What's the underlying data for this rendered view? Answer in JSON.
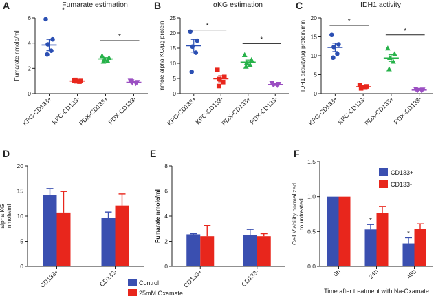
{
  "chart_data": [
    {
      "panel": "A",
      "type": "scatter",
      "title": "Fumarate estimation",
      "ylabel": "Fumarate nmole/ml",
      "ylim": [
        0,
        6
      ],
      "yticks": [
        0,
        2,
        4,
        6
      ],
      "categories": [
        "KPC-CD133+",
        "KPC-CD133-",
        "PDX-CD133+",
        "PDX-CD133-"
      ],
      "colors": [
        "#2b4fb3",
        "#e8261c",
        "#27b24a",
        "#9b4fc2"
      ],
      "markers": [
        "circle",
        "square",
        "triangle-up",
        "triangle-down"
      ],
      "points": [
        [
          5.9,
          4.3,
          3.9,
          3.4,
          3.1
        ],
        [
          1.05,
          1.0,
          0.98,
          0.95,
          1.08
        ],
        [
          3.0,
          2.85,
          2.7,
          2.6,
          2.55
        ],
        [
          1.0,
          0.9,
          0.85,
          0.8,
          0.95
        ]
      ],
      "means": [
        3.85,
        1.0,
        2.75,
        0.9
      ],
      "sems": [
        0.45,
        0.05,
        0.1,
        0.05
      ],
      "significance": [
        {
          "from": 0,
          "to": 1,
          "y": 6.3,
          "label": "*"
        },
        {
          "from": 2,
          "to": 3,
          "y": 4.2,
          "label": "*"
        }
      ]
    },
    {
      "panel": "B",
      "type": "scatter",
      "title": "αKG estimation",
      "ylabel": "nmole alpha KG/µg protein",
      "ylim": [
        0,
        25
      ],
      "yticks": [
        0,
        5,
        10,
        15,
        20,
        25
      ],
      "categories": [
        "KPC-CD133+",
        "KPC-CD133-",
        "PDX-CD133+",
        "PDX-CD133-"
      ],
      "colors": [
        "#2b4fb3",
        "#e8261c",
        "#27b24a",
        "#9b4fc2"
      ],
      "markers": [
        "circle",
        "square",
        "triangle-up",
        "triangle-down"
      ],
      "points": [
        [
          20.5,
          17.5,
          15.5,
          13.5,
          7.2
        ],
        [
          7.8,
          5.5,
          4.8,
          3.8,
          2.5
        ],
        [
          12.8,
          11.2,
          10.2,
          9.5,
          9.0
        ],
        [
          3.4,
          3.1,
          2.9,
          2.7,
          2.9
        ]
      ],
      "means": [
        15.8,
        4.9,
        10.4,
        3.0
      ],
      "sems": [
        2.1,
        1.0,
        0.7,
        0.3
      ],
      "significance": [
        {
          "from": 0,
          "to": 1,
          "y": 21.0,
          "label": "*"
        },
        {
          "from": 2,
          "to": 3,
          "y": 16.5,
          "label": "*"
        }
      ]
    },
    {
      "panel": "C",
      "type": "scatter",
      "title": "IDH1 activity",
      "ylabel": "IDH1 activity/µg protein/min",
      "ylim": [
        0,
        20
      ],
      "yticks": [
        0,
        5,
        10,
        15,
        20
      ],
      "categories": [
        "KPC-CD133+",
        "KPC-CD133-",
        "PDX-CD133+",
        "PDX-CD133-"
      ],
      "colors": [
        "#2b4fb3",
        "#e8261c",
        "#27b24a",
        "#9b4fc2"
      ],
      "markers": [
        "circle",
        "square",
        "triangle-up",
        "triangle-down"
      ],
      "points": [
        [
          15.5,
          13.0,
          12.3,
          10.5,
          9.5
        ],
        [
          2.3,
          1.9,
          1.7,
          1.6,
          1.4
        ],
        [
          12.0,
          10.5,
          9.5,
          8.5,
          6.5
        ],
        [
          1.2,
          1.0,
          0.9,
          0.85,
          0.8
        ]
      ],
      "means": [
        12.2,
        1.8,
        9.4,
        0.95
      ],
      "sems": [
        1.1,
        0.15,
        0.9,
        0.08
      ],
      "significance": [
        {
          "from": 0,
          "to": 1,
          "y": 18.0,
          "label": "*"
        },
        {
          "from": 2,
          "to": 3,
          "y": 15.5,
          "label": "*"
        }
      ]
    },
    {
      "panel": "D",
      "type": "bar",
      "title": "",
      "ylabel": "alpha KG nmole/ml",
      "ylim": [
        0,
        20
      ],
      "yticks": [
        0,
        5,
        10,
        15,
        20
      ],
      "categories": [
        "CD133+",
        "CD133-"
      ],
      "series": [
        {
          "name": "Control",
          "color": "#3a4fb0",
          "values": [
            14.2,
            9.6
          ],
          "errors": [
            1.3,
            1.2
          ]
        },
        {
          "name": "25mM Oxamate",
          "color": "#e8261c",
          "values": [
            10.7,
            12.1
          ],
          "errors": [
            4.2,
            2.3
          ]
        }
      ]
    },
    {
      "panel": "E",
      "type": "bar",
      "title": "",
      "ylabel": "Fumarate nmole/ml",
      "ylim": [
        0,
        8
      ],
      "yticks": [
        0,
        2,
        4,
        6,
        8
      ],
      "categories": [
        "CD133+",
        "CD133-"
      ],
      "series": [
        {
          "name": "Control",
          "color": "#3a4fb0",
          "values": [
            2.55,
            2.5
          ],
          "errors": [
            0.05,
            0.45
          ]
        },
        {
          "name": "25mM Oxamate",
          "color": "#e8261c",
          "values": [
            2.4,
            2.4
          ],
          "errors": [
            0.85,
            0.2
          ]
        }
      ]
    },
    {
      "panel": "F",
      "type": "bar",
      "title": "",
      "ylabel": "Cell Viability normalized to untreated",
      "xlabel": "Time after treatment with Na-Oxamate",
      "ylim": [
        0,
        1.5
      ],
      "yticks": [
        0.0,
        0.5,
        1.0,
        1.5
      ],
      "categories": [
        "0h",
        "24h",
        "48h"
      ],
      "series": [
        {
          "name": "CD133+",
          "color": "#3a4fb0",
          "values": [
            1.0,
            0.53,
            0.33
          ],
          "errors": [
            0,
            0.07,
            0.08
          ]
        },
        {
          "name": "CD133-",
          "color": "#e8261c",
          "values": [
            1.0,
            0.76,
            0.54
          ],
          "errors": [
            0,
            0.1,
            0.07
          ]
        }
      ],
      "annotations": [
        {
          "category": 1,
          "series": 0,
          "label": "*"
        },
        {
          "category": 2,
          "series": 0,
          "label": "*"
        }
      ]
    }
  ],
  "legends": {
    "de": [
      {
        "name": "Control",
        "color": "#3a4fb0"
      },
      {
        "name": "25mM Oxamate",
        "color": "#e8261c"
      }
    ],
    "f": [
      {
        "name": "CD133+",
        "color": "#3a4fb0"
      },
      {
        "name": "CD133-",
        "color": "#e8261c"
      }
    ]
  }
}
